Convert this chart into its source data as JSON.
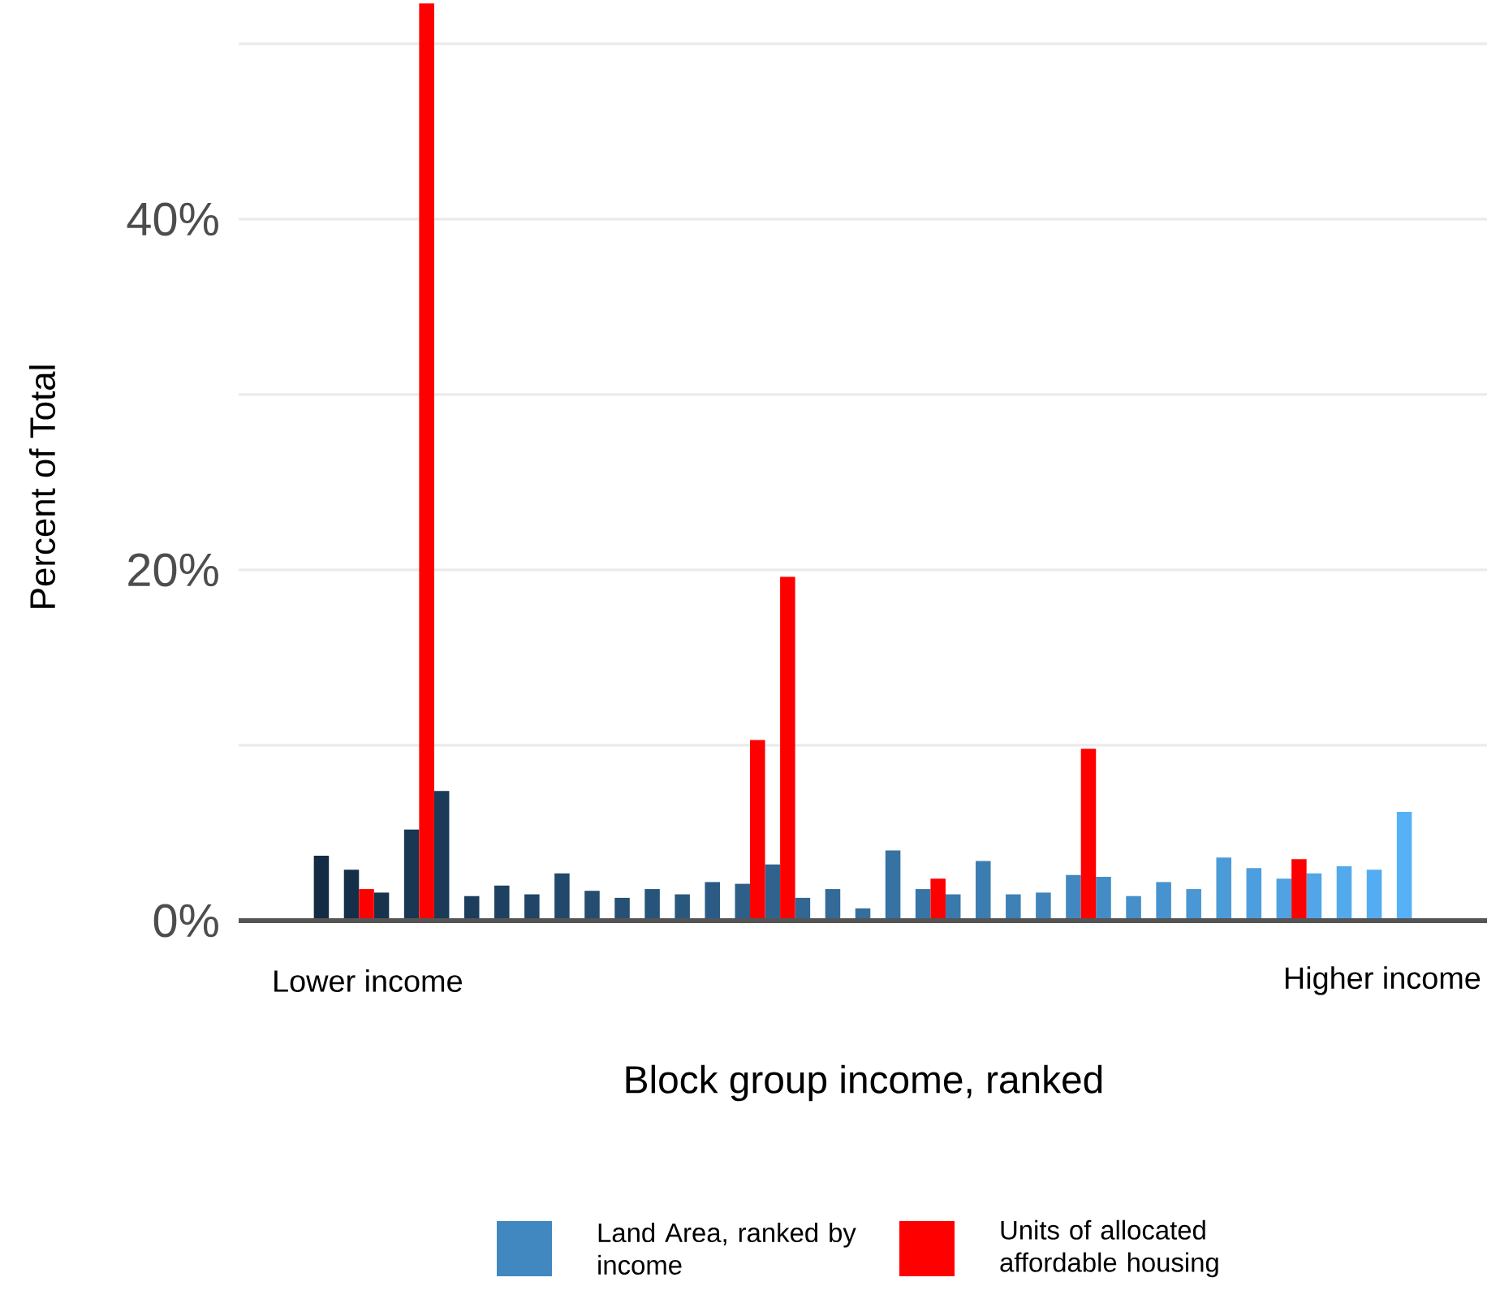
{
  "chart_data": {
    "type": "bar",
    "xlabel": "Block group income, ranked",
    "ylabel": "Percent of Total",
    "annotations": [
      "Lower income",
      "Higher income"
    ],
    "categories": [
      null,
      null,
      null,
      null,
      null,
      null,
      null,
      null,
      null,
      null,
      null,
      null,
      null,
      null,
      null,
      null,
      null,
      null,
      null,
      null,
      null,
      null,
      null,
      null,
      null,
      null,
      null,
      null,
      null,
      null,
      null,
      null,
      null,
      null,
      null,
      null,
      null,
      null,
      null,
      null,
      null,
      null,
      null,
      null,
      null,
      null,
      null,
      null,
      null,
      null,
      null,
      null,
      null,
      null,
      null,
      null,
      null,
      null,
      null,
      null,
      null,
      null,
      null,
      null,
      null,
      null,
      null,
      null,
      null,
      null,
      null,
      null,
      null,
      null,
      null,
      null,
      null,
      null,
      null,
      null,
      null,
      null,
      null
    ],
    "series": [
      {
        "name": "Land Area, ranked by income",
        "color": "#4288c0",
        "values": [
          null,
          null,
          null,
          null,
          null,
          3.7,
          null,
          2.9,
          null,
          1.6,
          null,
          5.2,
          null,
          7.4,
          null,
          1.4,
          null,
          2.0,
          null,
          1.5,
          null,
          2.7,
          null,
          1.7,
          null,
          1.3,
          null,
          1.8,
          null,
          1.5,
          null,
          2.2,
          null,
          2.1,
          null,
          3.2,
          null,
          1.3,
          null,
          1.8,
          null,
          0.7,
          null,
          4.0,
          null,
          1.8,
          null,
          1.5,
          null,
          3.4,
          null,
          1.5,
          null,
          1.6,
          null,
          2.6,
          null,
          2.5,
          null,
          1.4,
          null,
          2.2,
          null,
          1.8,
          null,
          3.6,
          null,
          3.0,
          null,
          2.4,
          null,
          2.7,
          null,
          3.1,
          null,
          2.9,
          null,
          6.2,
          null,
          null,
          null,
          null,
          null
        ],
        "colors": [
          null,
          null,
          null,
          null,
          null,
          "#132b43",
          null,
          "#152f48",
          null,
          "#17324d",
          null,
          "#193652",
          null,
          "#1a3a57",
          null,
          "#1c3e5c",
          null,
          "#1e4161",
          null,
          "#204566",
          null,
          "#22496b",
          null,
          "#244d70",
          null,
          "#265075",
          null,
          "#27547a",
          null,
          "#29587f",
          null,
          "#2b5b84",
          null,
          "#2d5f89",
          null,
          "#2f638e",
          null,
          "#316793",
          null,
          "#336a98",
          null,
          "#346e9d",
          null,
          "#3672a2",
          null,
          "#3875a7",
          null,
          "#3a79ac",
          null,
          "#3c7db1",
          null,
          "#3e81b6",
          null,
          "#4084bb",
          null,
          "#4288c0",
          null,
          "#438cc5",
          null,
          "#4590ca",
          null,
          "#4793cf",
          null,
          "#4997d4",
          null,
          "#4b9bd9",
          null,
          "#4d9ede",
          null,
          "#4fa2e3",
          null,
          "#50a6e8",
          null,
          "#52aaed",
          null,
          "#54adf2",
          null,
          "#56b1f7",
          null,
          null,
          null,
          null,
          null
        ]
      },
      {
        "name": "Units of allocated affordable housing",
        "color": "#ff0000",
        "values": [
          null,
          null,
          null,
          null,
          null,
          null,
          null,
          null,
          1.8,
          null,
          null,
          null,
          52.3,
          null,
          null,
          null,
          null,
          null,
          null,
          null,
          null,
          null,
          null,
          null,
          null,
          null,
          null,
          null,
          null,
          null,
          null,
          null,
          null,
          null,
          10.3,
          null,
          19.6,
          null,
          null,
          null,
          null,
          null,
          null,
          null,
          null,
          null,
          2.4,
          null,
          null,
          null,
          null,
          null,
          null,
          null,
          null,
          null,
          9.8,
          null,
          null,
          null,
          null,
          null,
          null,
          null,
          null,
          null,
          null,
          null,
          null,
          null,
          3.5,
          null,
          null,
          null,
          null,
          null,
          null,
          null,
          null,
          null,
          null,
          null,
          null
        ]
      }
    ],
    "ylim": [
      0,
      52.5
    ],
    "yticks": [
      {
        "value": 0,
        "label": "0%"
      },
      {
        "value": 10,
        "label": null
      },
      {
        "value": 20,
        "label": "20%"
      },
      {
        "value": 30,
        "label": null
      },
      {
        "value": 40,
        "label": "40%"
      },
      {
        "value": 50,
        "label": null
      }
    ],
    "grid": "y",
    "ref_lines": [
      {
        "axis": "y",
        "value": 0,
        "color": "#555555"
      }
    ],
    "legend": "bottom"
  }
}
